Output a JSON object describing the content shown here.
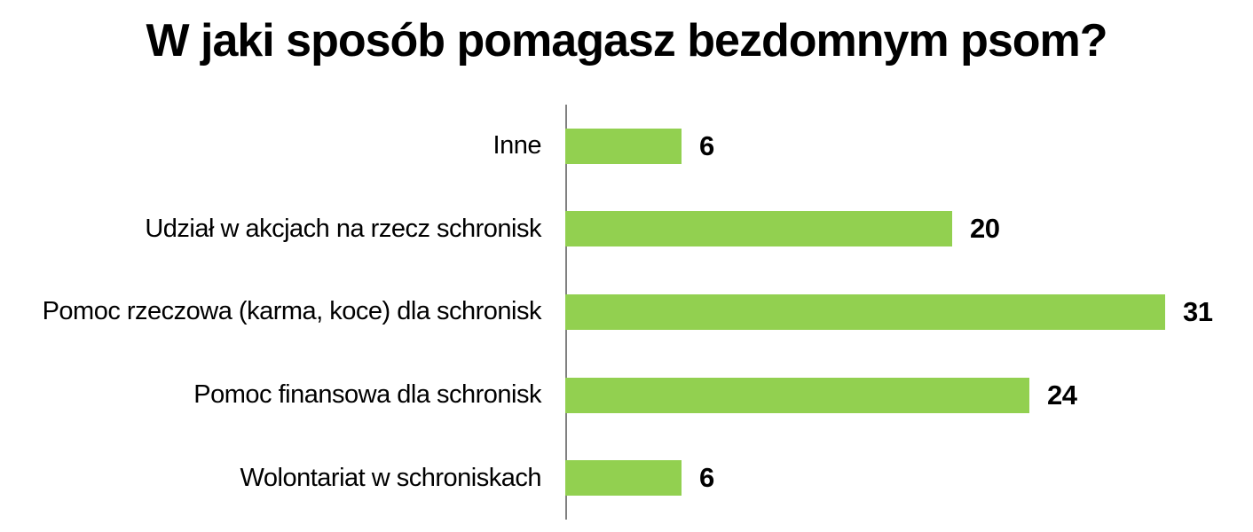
{
  "title": "W jaki sposób pomagasz bezdomnym psom?",
  "colors": {
    "bar": "#92D050",
    "axis": "#808080",
    "text": "#000000"
  },
  "chart_data": {
    "type": "bar",
    "orientation": "horizontal",
    "title": "W jaki sposób pomagasz bezdomnym psom?",
    "categories": [
      "Inne",
      "Udział w akcjach na rzecz schronisk",
      "Pomoc rzeczowa (karma, koce) dla schronisk",
      "Pomoc finansowa dla schronisk",
      "Wolontariat w schroniskach"
    ],
    "values": [
      6,
      20,
      31,
      24,
      6
    ],
    "xlabel": "",
    "ylabel": "",
    "xlim": [
      0,
      35.5
    ],
    "grid": false,
    "legend": false,
    "value_labels_shown": true
  }
}
